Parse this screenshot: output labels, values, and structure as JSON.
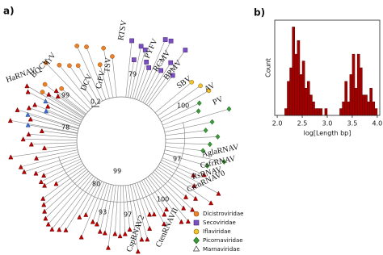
{
  "tree": {
    "panel_label": "a)",
    "tip_labels": [
      "TrV",
      "BQCV",
      "HaRNAV",
      "DCV",
      "CrPV",
      "TSV",
      "RTSV",
      "PYFV",
      "RCMV",
      "BPMV",
      "SBV",
      "AV",
      "PV",
      "AglaRNAV",
      "CsfrRNAV",
      "RsRNAV",
      "CtenRNAV0",
      "CtenRNAVII",
      "CspRNAV2"
    ],
    "support_values": [
      99,
      79,
      100,
      78,
      99,
      80,
      100,
      93,
      97,
      97
    ],
    "scale_bar": 0.2,
    "legend": [
      "Dicistroviridae",
      "Secoviridae",
      "Iflaviridae",
      "Picornaviridae",
      "Marnaviridae"
    ]
  },
  "chart_data": {
    "type": "histogram",
    "panel_label": "b)",
    "xlabel": "log[Length bp]",
    "ylabel": "Count",
    "bins": [
      2.15,
      2.2,
      2.25,
      2.3,
      2.35,
      2.4,
      2.45,
      2.5,
      2.55,
      2.6,
      2.65,
      2.7,
      2.75,
      2.8,
      2.85,
      2.9,
      2.95,
      3.0,
      3.05,
      3.1,
      3.15,
      3.2,
      3.25,
      3.3,
      3.35,
      3.4,
      3.45,
      3.5,
      3.55,
      3.6,
      3.65,
      3.7,
      3.75,
      3.8,
      3.85,
      3.9,
      3.95,
      4.0
    ],
    "values": [
      1,
      5,
      7,
      13,
      9,
      11,
      6,
      8,
      4,
      5,
      3,
      2,
      1,
      1,
      1,
      0,
      1,
      0,
      0,
      0,
      0,
      0,
      1,
      2,
      5,
      2,
      6,
      9,
      4,
      9,
      7,
      3,
      3,
      2,
      4,
      2,
      1
    ],
    "color": "#a50000",
    "xlim": [
      1.95,
      4.05
    ],
    "ylim": [
      0,
      14
    ],
    "xticks": [
      {
        "value": 2.0,
        "label": "2.0"
      },
      {
        "value": 2.5,
        "label": "2.5"
      },
      {
        "value": 3.0,
        "label": "3.0"
      },
      {
        "value": 3.5,
        "label": "3.5"
      },
      {
        "value": 4.0,
        "label": "4.0"
      }
    ]
  }
}
